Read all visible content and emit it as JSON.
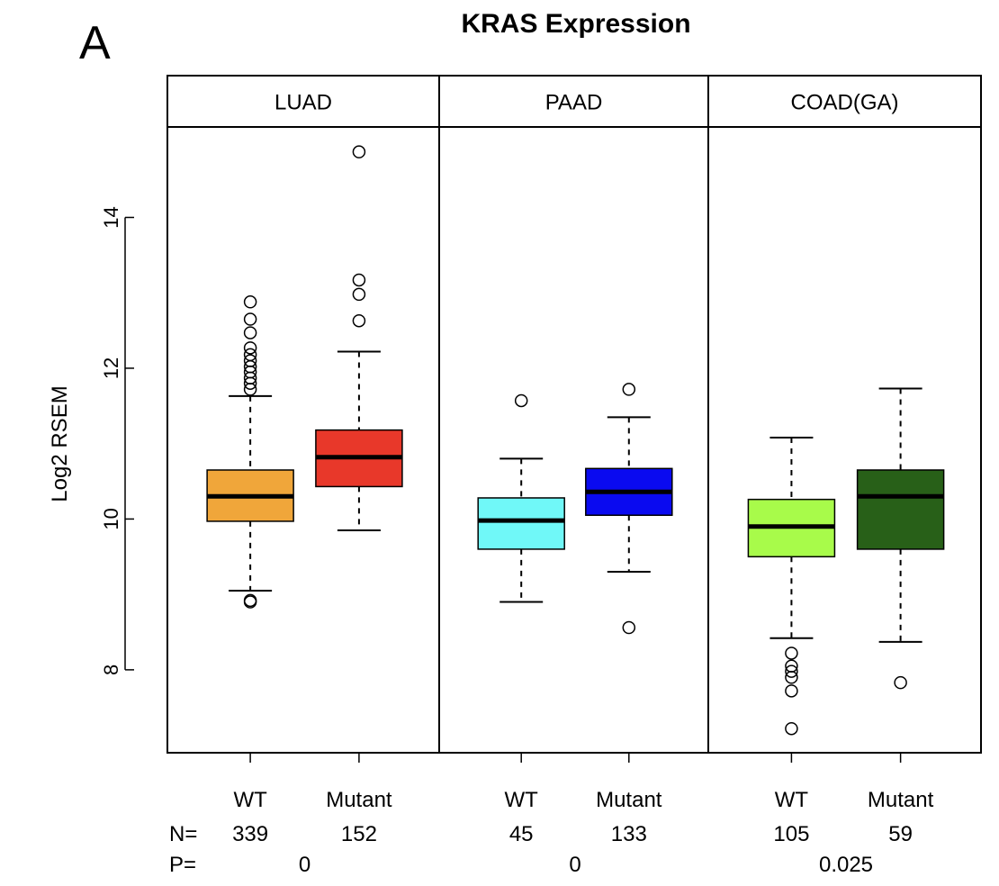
{
  "panel_label": "A",
  "chart_data": {
    "type": "boxplot",
    "title": "KRAS Expression",
    "ylabel": "Log2 RSEM",
    "ylim": [
      6.9,
      15.2
    ],
    "yticks": [
      8,
      10,
      12,
      14
    ],
    "yticklabels": [
      "8",
      "10",
      "12",
      "14"
    ],
    "n_label": "N=",
    "p_label": "P=",
    "panels": [
      {
        "name": "LUAD",
        "p_value": "0",
        "groups": [
          {
            "label": "WT",
            "n": "339",
            "color": "#f0a63a",
            "whisker_low": 9.05,
            "q1": 9.97,
            "median": 10.3,
            "q3": 10.65,
            "whisker_high": 11.63,
            "outliers": [
              8.9,
              8.92,
              11.72,
              11.8,
              11.87,
              11.95,
              12.02,
              12.1,
              12.18,
              12.27,
              12.47,
              12.65,
              12.88
            ]
          },
          {
            "label": "Mutant",
            "n": "152",
            "color": "#e8382a",
            "whisker_low": 9.85,
            "q1": 10.43,
            "median": 10.82,
            "q3": 11.18,
            "whisker_high": 12.22,
            "outliers": [
              12.63,
              12.98,
              13.17,
              14.87
            ]
          }
        ]
      },
      {
        "name": "PAAD",
        "p_value": "0",
        "groups": [
          {
            "label": "WT",
            "n": "45",
            "color": "#70f8f8",
            "whisker_low": 8.9,
            "q1": 9.6,
            "median": 9.98,
            "q3": 10.28,
            "whisker_high": 10.8,
            "outliers": [
              11.57
            ]
          },
          {
            "label": "Mutant",
            "n": "133",
            "color": "#0a0af0",
            "whisker_low": 9.3,
            "q1": 10.05,
            "median": 10.36,
            "q3": 10.67,
            "whisker_high": 11.35,
            "outliers": [
              8.56,
              11.72
            ]
          }
        ]
      },
      {
        "name": "COAD(GA)",
        "p_value": "0.025",
        "groups": [
          {
            "label": "WT",
            "n": "105",
            "color": "#a8fb4a",
            "whisker_low": 8.42,
            "q1": 9.5,
            "median": 9.9,
            "q3": 10.26,
            "whisker_high": 11.08,
            "outliers": [
              7.22,
              7.72,
              7.9,
              7.98,
              8.05,
              8.22
            ]
          },
          {
            "label": "Mutant",
            "n": "59",
            "color": "#286018",
            "whisker_low": 8.37,
            "q1": 9.6,
            "median": 10.3,
            "q3": 10.65,
            "whisker_high": 11.73,
            "outliers": [
              7.83
            ]
          }
        ]
      }
    ]
  }
}
